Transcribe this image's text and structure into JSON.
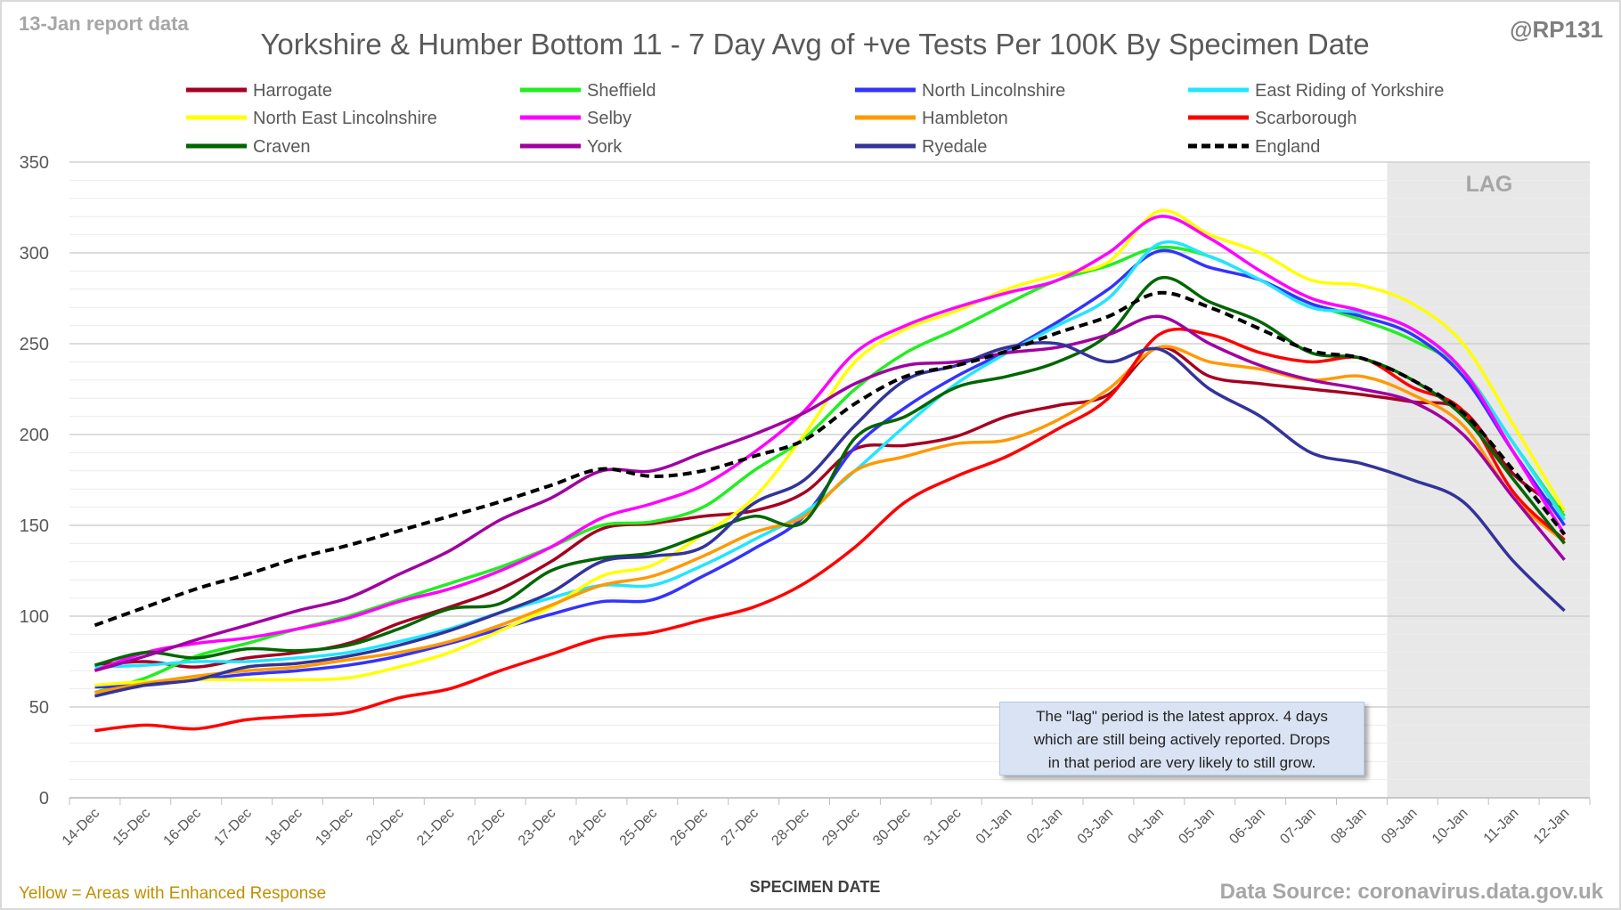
{
  "report_label": "13-Jan report data",
  "handle": "@RP131",
  "footer_left": "Yellow = Areas with Enhanced Response",
  "footer_right": "Data Source: coronavirus.data.gov.uk",
  "lag_label": "LAG",
  "note": {
    "line1": "The \"lag\" period is the latest approx. 4 days",
    "line2": "which are still being actively reported.  Drops",
    "line3": "in that period are very likely to still grow."
  },
  "colors": {
    "lag_shade": "#e8e8e8",
    "footer_left": "#bf9000"
  },
  "chart_data": {
    "type": "line",
    "title": "Yorkshire & Humber Bottom 11 - 7 Day Avg of +ve Tests Per 100K By Specimen Date",
    "xlabel": "SPECIMEN DATE",
    "ylabel": "",
    "ylim": [
      0,
      350
    ],
    "yticks": [
      0,
      50,
      100,
      150,
      200,
      250,
      300,
      350
    ],
    "grid": true,
    "legend_position": "top",
    "lag_period": [
      "09-Jan",
      "12-Jan"
    ],
    "categories": [
      "14-Dec",
      "15-Dec",
      "16-Dec",
      "17-Dec",
      "18-Dec",
      "19-Dec",
      "20-Dec",
      "21-Dec",
      "22-Dec",
      "23-Dec",
      "24-Dec",
      "25-Dec",
      "26-Dec",
      "27-Dec",
      "28-Dec",
      "29-Dec",
      "30-Dec",
      "31-Dec",
      "01-Jan",
      "02-Jan",
      "03-Jan",
      "04-Jan",
      "05-Jan",
      "06-Jan",
      "07-Jan",
      "08-Jan",
      "09-Jan",
      "10-Jan",
      "11-Jan",
      "12-Jan"
    ],
    "series": [
      {
        "name": "Harrogate",
        "color": "#a50021",
        "dashed": false,
        "values": [
          73,
          75,
          72,
          77,
          80,
          85,
          96,
          105,
          115,
          130,
          148,
          151,
          155,
          158,
          168,
          192,
          194,
          199,
          210,
          216,
          222,
          248,
          232,
          228,
          225,
          222,
          218,
          213,
          178,
          158
        ]
      },
      {
        "name": "Sheffield",
        "color": "#22ee22",
        "dashed": false,
        "values": [
          58,
          66,
          78,
          85,
          93,
          100,
          109,
          118,
          127,
          138,
          150,
          152,
          160,
          180,
          198,
          225,
          245,
          258,
          272,
          285,
          293,
          303,
          298,
          285,
          272,
          263,
          252,
          235,
          195,
          155
        ]
      },
      {
        "name": "North Lincolnshire",
        "color": "#3333ff",
        "dashed": false,
        "values": [
          61,
          62,
          65,
          68,
          70,
          73,
          78,
          85,
          93,
          101,
          108,
          109,
          122,
          137,
          155,
          193,
          215,
          232,
          246,
          262,
          280,
          301,
          292,
          285,
          272,
          265,
          255,
          232,
          190,
          150
        ]
      },
      {
        "name": "East Riding of Yorkshire",
        "color": "#22e5ff",
        "dashed": false,
        "values": [
          72,
          73,
          75,
          75,
          77,
          80,
          86,
          93,
          102,
          110,
          117,
          117,
          128,
          142,
          157,
          180,
          205,
          228,
          245,
          260,
          275,
          305,
          298,
          285,
          270,
          267,
          258,
          235,
          195,
          153
        ]
      },
      {
        "name": "North East Lincolnshire",
        "color": "#ffff00",
        "dashed": false,
        "values": [
          62,
          64,
          65,
          65,
          65,
          66,
          72,
          80,
          92,
          105,
          122,
          128,
          145,
          165,
          200,
          240,
          258,
          268,
          280,
          288,
          295,
          323,
          310,
          300,
          285,
          282,
          272,
          250,
          205,
          158
        ]
      },
      {
        "name": "Selby",
        "color": "#ff00ff",
        "dashed": false,
        "values": [
          70,
          80,
          85,
          88,
          93,
          99,
          108,
          115,
          125,
          138,
          154,
          162,
          172,
          190,
          213,
          245,
          260,
          270,
          278,
          285,
          300,
          320,
          308,
          290,
          275,
          268,
          258,
          235,
          190,
          145
        ]
      },
      {
        "name": "Hambleton",
        "color": "#ff9900",
        "dashed": false,
        "values": [
          58,
          63,
          67,
          70,
          72,
          76,
          80,
          86,
          95,
          106,
          117,
          122,
          133,
          146,
          155,
          180,
          188,
          195,
          197,
          208,
          225,
          248,
          240,
          236,
          230,
          232,
          222,
          205,
          165,
          141
        ]
      },
      {
        "name": "Scarborough",
        "color": "#ff0000",
        "dashed": false,
        "values": [
          37,
          40,
          38,
          43,
          45,
          47,
          55,
          60,
          70,
          79,
          88,
          91,
          98,
          105,
          118,
          138,
          163,
          177,
          188,
          203,
          220,
          255,
          255,
          245,
          240,
          242,
          226,
          213,
          168,
          142
        ]
      },
      {
        "name": "Craven",
        "color": "#006600",
        "dashed": false,
        "values": [
          73,
          80,
          77,
          82,
          81,
          84,
          93,
          104,
          107,
          125,
          132,
          135,
          145,
          155,
          152,
          198,
          210,
          226,
          232,
          240,
          255,
          286,
          273,
          262,
          245,
          242,
          230,
          210,
          175,
          140
        ]
      },
      {
        "name": "York",
        "color": "#a000a0",
        "dashed": false,
        "values": [
          70,
          78,
          87,
          95,
          103,
          110,
          123,
          136,
          153,
          165,
          180,
          180,
          190,
          200,
          212,
          228,
          238,
          240,
          245,
          248,
          255,
          265,
          250,
          238,
          230,
          225,
          218,
          200,
          165,
          131
        ]
      },
      {
        "name": "Ryedale",
        "color": "#333399",
        "dashed": false,
        "values": [
          56,
          62,
          65,
          72,
          74,
          78,
          84,
          92,
          102,
          113,
          130,
          133,
          138,
          162,
          175,
          205,
          230,
          238,
          248,
          250,
          240,
          247,
          225,
          210,
          190,
          184,
          175,
          163,
          130,
          103
        ]
      },
      {
        "name": "England",
        "color": "#000000",
        "dashed": true,
        "values": [
          95,
          105,
          115,
          123,
          132,
          139,
          147,
          155,
          163,
          172,
          181,
          177,
          180,
          188,
          197,
          217,
          232,
          238,
          246,
          256,
          265,
          278,
          270,
          258,
          246,
          242,
          230,
          212,
          180,
          145
        ]
      }
    ]
  }
}
